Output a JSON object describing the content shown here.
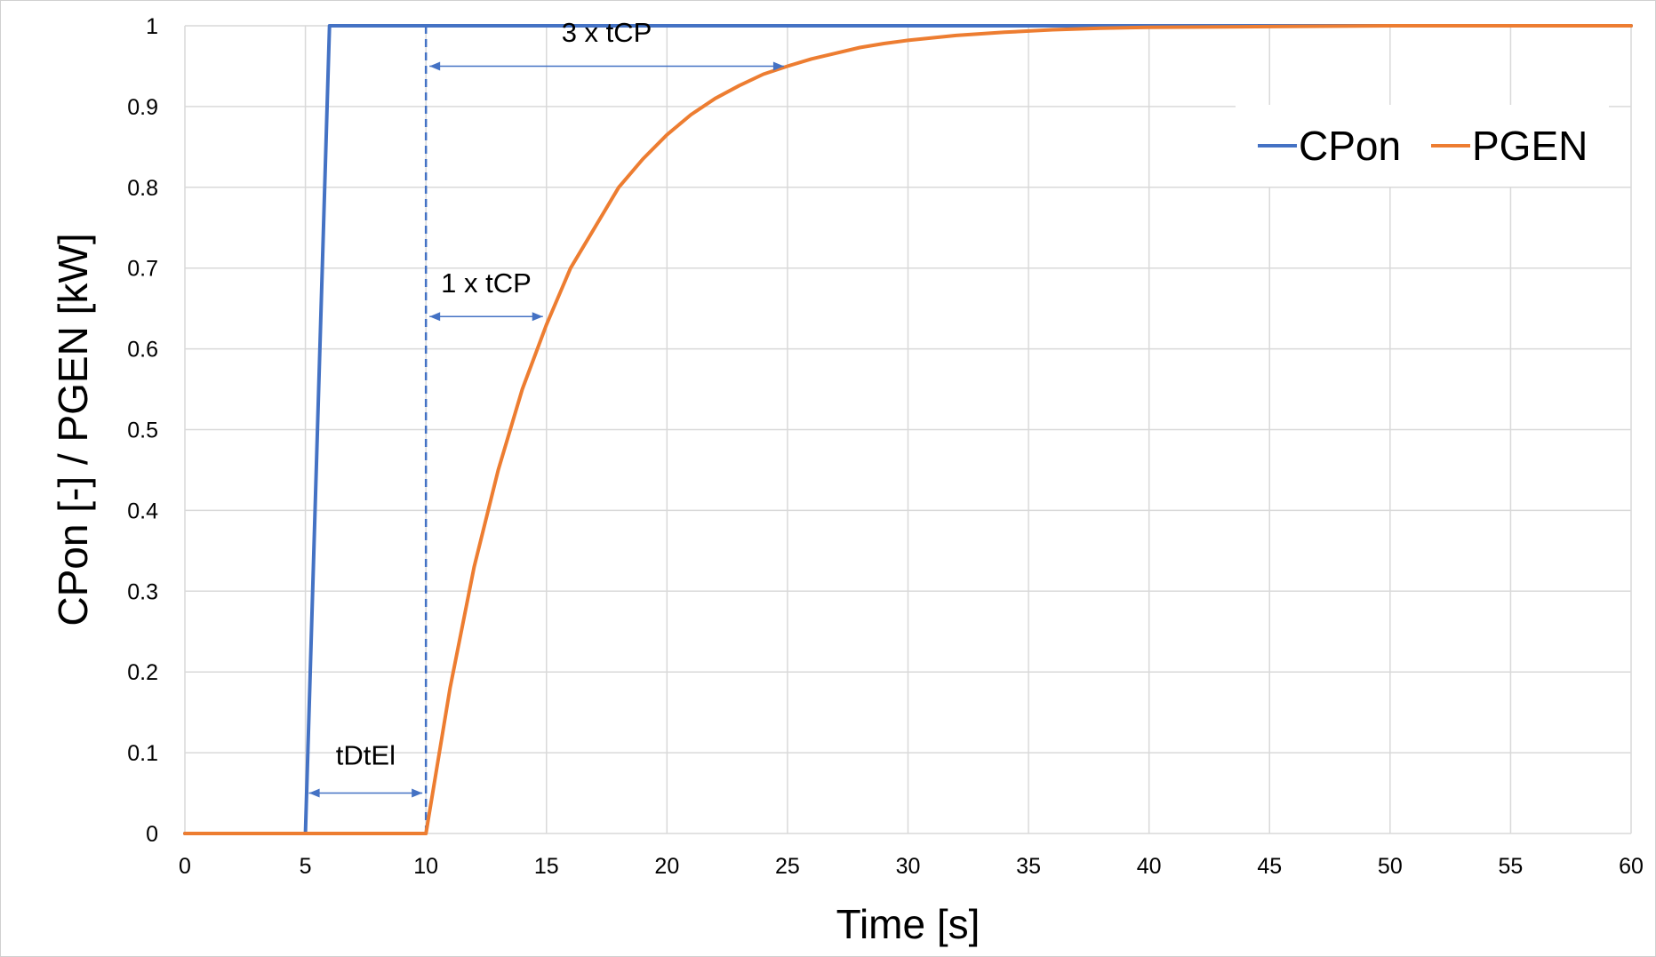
{
  "chart_data": {
    "type": "line",
    "xlabel": "Time [s]",
    "ylabel": "CPon [-] / PGEN [kW]",
    "xlim": [
      0,
      60
    ],
    "ylim": [
      0,
      1
    ],
    "x_ticks": [
      0,
      5,
      10,
      15,
      20,
      25,
      30,
      35,
      40,
      45,
      50,
      55,
      60
    ],
    "y_ticks": [
      0,
      0.1,
      0.2,
      0.3,
      0.4,
      0.5,
      0.6,
      0.7,
      0.8,
      0.9,
      1
    ],
    "grid": true,
    "legend_position": "top-right",
    "series": [
      {
        "name": "CPon",
        "color": "#4472C4",
        "x": [
          0,
          5,
          6,
          60
        ],
        "y": [
          0,
          0,
          1,
          1
        ]
      },
      {
        "name": "PGEN",
        "color": "#ED7D31",
        "x": [
          0,
          10,
          11,
          12,
          13,
          14,
          15,
          16,
          17,
          18,
          19,
          20,
          21,
          22,
          23,
          24,
          25,
          26,
          27,
          28,
          29,
          30,
          32,
          34,
          36,
          38,
          40,
          45,
          50,
          55,
          60
        ],
        "y": [
          0,
          0,
          0.18,
          0.33,
          0.45,
          0.55,
          0.63,
          0.7,
          0.75,
          0.8,
          0.835,
          0.865,
          0.89,
          0.91,
          0.926,
          0.94,
          0.95,
          0.959,
          0.966,
          0.973,
          0.978,
          0.982,
          0.988,
          0.992,
          0.995,
          0.997,
          0.998,
          0.999,
          1.0,
          1.0,
          1.0
        ]
      }
    ],
    "vertical_marker": {
      "x": 10,
      "color": "#4472C4",
      "style": "dashed"
    },
    "annotations": [
      {
        "text": "tDtEl",
        "x_start": 5,
        "x_end": 10,
        "y": 0.05,
        "label_y": 0.085
      },
      {
        "text": "1 x tCP",
        "x_start": 10,
        "x_end": 15,
        "y": 0.64,
        "label_y": 0.67
      },
      {
        "text": "3 x tCP",
        "x_start": 10,
        "x_end": 25,
        "y": 0.95,
        "label_y": 0.98
      }
    ]
  }
}
